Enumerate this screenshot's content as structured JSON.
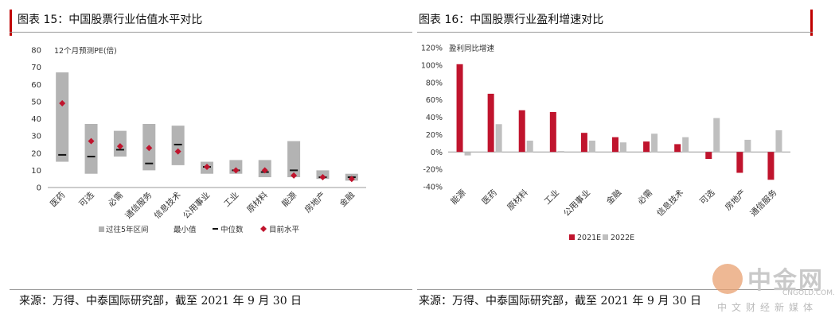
{
  "left": {
    "title": "图表 15：中国股票行业估值水平对比",
    "source": "来源：万得、中泰国际研究部，截至 2021 年 9 月 30 日"
  },
  "right": {
    "title": "图表 16：中国股票行业盈利增速对比",
    "source": "来源：万得、中泰国际研究部，截至 2021 年 9 月 30 日"
  },
  "watermark": {
    "name": "中金网",
    "url": "CNGOLD.COM.CN",
    "slogan": "中文财经新媒体"
  },
  "colors": {
    "accent_red": "#c00000",
    "range_gray": "#b3b3b3",
    "marker_red": "#c0142d",
    "bar_red": "#c0142d",
    "bar_gray": "#bfbfbf"
  },
  "chart_data": [
    {
      "type": "range-bar",
      "ylabel": "12个月预测PE(倍)",
      "ylim": [
        0,
        80
      ],
      "yticks": [
        "0",
        "10",
        "20",
        "30",
        "40",
        "50",
        "60",
        "70",
        "80"
      ],
      "categories": [
        "医药",
        "可选",
        "必需",
        "通信服务",
        "信息技术",
        "公用事业",
        "工业",
        "原材料",
        "能源",
        "房地产",
        "金融"
      ],
      "series": [
        {
          "name": "过往5年区间",
          "low": [
            15,
            8,
            18,
            10,
            13,
            8,
            8,
            6,
            6,
            5,
            4
          ],
          "high": [
            67,
            37,
            33,
            37,
            36,
            15,
            16,
            16,
            27,
            10,
            8
          ]
        },
        {
          "name": "最小值",
          "values": [
            15,
            8,
            18,
            10,
            13,
            8,
            8,
            6,
            6,
            5,
            4
          ]
        },
        {
          "name": "中位数",
          "values": [
            19,
            18,
            22,
            14,
            25,
            12,
            10,
            9,
            10,
            6,
            6
          ]
        },
        {
          "name": "目前水平",
          "values": [
            49,
            27,
            24,
            23,
            21,
            12,
            10,
            10,
            7,
            6,
            5
          ]
        }
      ],
      "legend": [
        "过往5年区间",
        "最小值",
        "中位数",
        "目前水平"
      ],
      "legend_position": "bottom"
    },
    {
      "type": "bar",
      "ylabel": "盈利同比增速",
      "ylim": [
        -40,
        120
      ],
      "yticks": [
        "-40%",
        "-20%",
        "0%",
        "20%",
        "40%",
        "60%",
        "80%",
        "100%",
        "120%"
      ],
      "categories": [
        "能源",
        "医药",
        "原材料",
        "工业",
        "公用事业",
        "金融",
        "必需",
        "信息技术",
        "可选",
        "房地产",
        "通信服务"
      ],
      "series": [
        {
          "name": "2021E",
          "values": [
            101,
            67,
            48,
            46,
            22,
            17,
            12,
            9,
            -8,
            -24,
            -32
          ]
        },
        {
          "name": "2022E",
          "values": [
            -4,
            32,
            13,
            1,
            13,
            11,
            21,
            17,
            39,
            14,
            25
          ]
        }
      ],
      "legend": [
        "2021E",
        "2022E"
      ],
      "legend_position": "bottom"
    }
  ]
}
